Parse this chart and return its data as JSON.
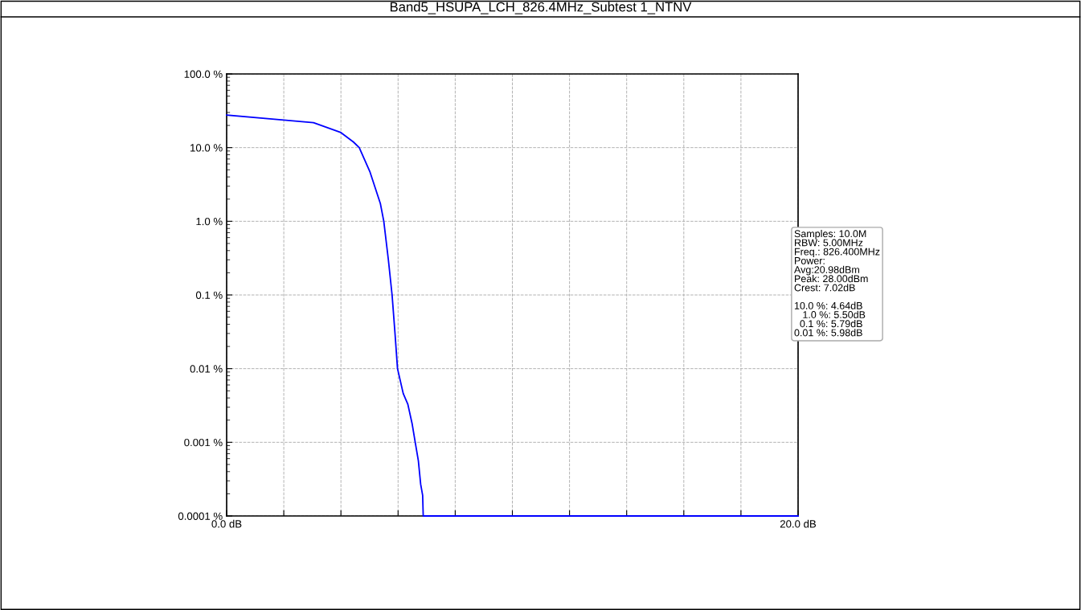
{
  "chart_data": {
    "type": "line",
    "title": "Band5_HSUPA_LCH_826.4MHz_Subtest 1_NTNV",
    "x": [
      0,
      2.0,
      3.04,
      4.0,
      4.44,
      4.64,
      5.01,
      5.38,
      5.5,
      5.66,
      5.79,
      5.89,
      5.98,
      6.18,
      6.34,
      6.49,
      6.6,
      6.71,
      6.79,
      6.86,
      6.88,
      20
    ],
    "series": [
      {
        "color": "#0000ff",
        "values": [
          27.6,
          23.7,
          21.8,
          16.0,
          11.9,
          10.0,
          4.75,
          1.74,
          1.0,
          0.3,
          0.1,
          0.031,
          0.01,
          0.0046,
          0.0033,
          0.0018,
          0.001,
          0.00056,
          0.00027,
          0.00019,
          0.0001,
          0.0001
        ]
      }
    ],
    "log": "y",
    "xlim": [
      0,
      20
    ],
    "xticks": [
      {
        "value": 0,
        "label": "0.0 dB"
      },
      {
        "value": 2,
        "label": null
      },
      {
        "value": 4,
        "label": null
      },
      {
        "value": 6,
        "label": null
      },
      {
        "value": 8,
        "label": null
      },
      {
        "value": 10,
        "label": null
      },
      {
        "value": 12,
        "label": null
      },
      {
        "value": 14,
        "label": null
      },
      {
        "value": 16,
        "label": null
      },
      {
        "value": 18,
        "label": null
      },
      {
        "value": 20,
        "label": "20.0 dB"
      }
    ],
    "ylim": [
      0.0001,
      100
    ],
    "yticks": [
      {
        "value": 0.0001,
        "label": "0.0001 %"
      },
      {
        "value": 0.001,
        "label": "0.001 %"
      },
      {
        "value": 0.01,
        "label": "0.01 %"
      },
      {
        "value": 0.1,
        "label": "0.1 %"
      },
      {
        "value": 1,
        "label": "1.0 %"
      },
      {
        "value": 10,
        "label": "10.0 %"
      },
      {
        "value": 100,
        "label": "100.0 %"
      }
    ],
    "grid": true,
    "line_style": "solid",
    "annotations": [
      "Samples: 10.0M\nRBW: 5.00MHz\nFreq.: 826.400MHz\nPower:\nAvg:20.98dBm\nPeak: 28.00dBm\nCrest: 7.02dB\n\n10.0 %: 4.64dB\n   1.0 %: 5.50dB\n  0.1 %: 5.79dB\n0.01 %: 5.98dB"
    ]
  }
}
